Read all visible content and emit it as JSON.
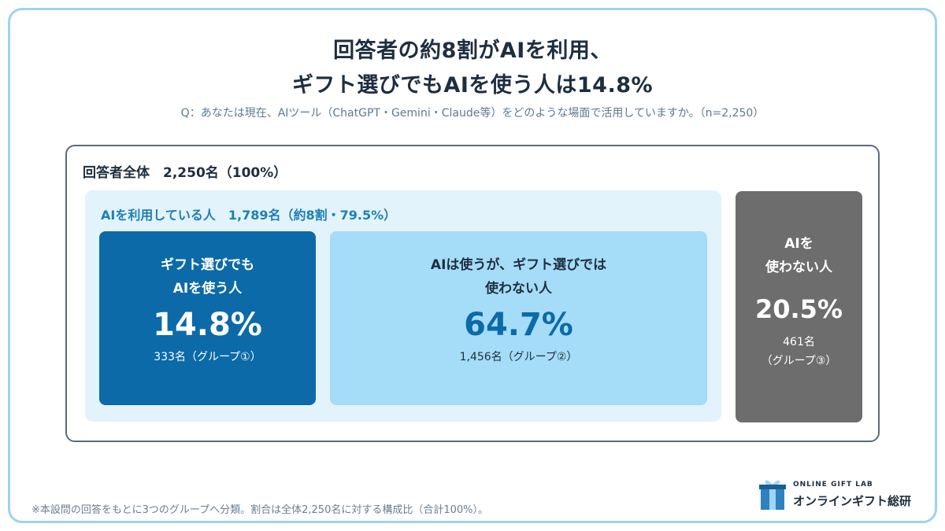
{
  "title": {
    "line1": "回答者の約8割がAIを利用、",
    "line2": "ギフト選びでもAIを使う人は14.8%"
  },
  "question": "Q：あなたは現在、AIツール（ChatGPT・Gemini・Claude等）をどのような場面で活用していますか。（n=2,250）",
  "chart_data": {
    "type": "table",
    "total": {
      "label": "回答者全体　2,250名（100%）",
      "count": 2250,
      "percent": 100
    },
    "ai_users": {
      "label": "AIを利用している人　1,789名（約8割・79.5%）",
      "count": 1789,
      "percent": 79.5
    },
    "groups": [
      {
        "name_line1": "ギフト選びでも",
        "name_line2": "AIを使う人",
        "percent": 14.8,
        "percent_label": "14.8%",
        "count_label": "333名（グループ①）",
        "count_line2": "",
        "color": "#0c6aa8"
      },
      {
        "name_line1": "AIは使うが、ギフト選びでは",
        "name_line2": "使わない人",
        "percent": 64.7,
        "percent_label": "64.7%",
        "count_label": "1,456名（グループ②）",
        "count_line2": "",
        "color": "#a5dcf8"
      },
      {
        "name_line1": "AIを",
        "name_line2": "使わない人",
        "percent": 20.5,
        "percent_label": "20.5%",
        "count_label": "461名",
        "count_line2": "（グループ③）",
        "color": "#6d6d6d"
      }
    ]
  },
  "footnote": "※本設問の回答をもとに3つのグループへ分類。割合は全体2,250名に対する構成比（合計100%）。",
  "logo": {
    "en": "ONLINE GIFT LAB",
    "jp": "オンラインギフト総研"
  }
}
